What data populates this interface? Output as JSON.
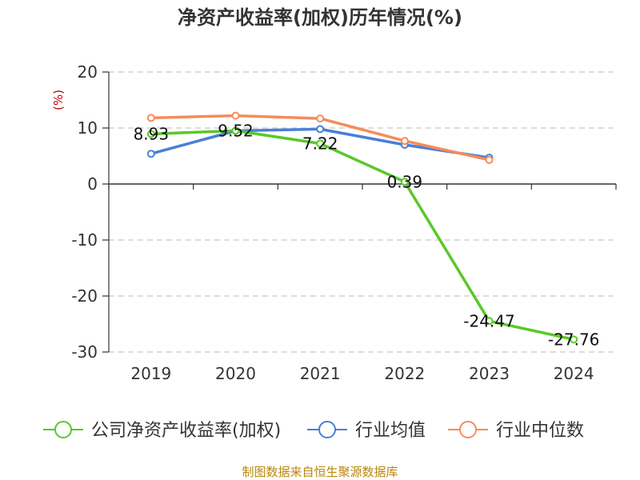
{
  "chart_data": {
    "type": "line",
    "title": "净资产收益率(加权)历年情况(%)",
    "ylabel": "(%)",
    "xlabel": "",
    "ylim": [
      -30,
      20
    ],
    "yticks": [
      20,
      10,
      0,
      -10,
      -20,
      -30
    ],
    "categories": [
      "2019",
      "2020",
      "2021",
      "2022",
      "2023",
      "2024"
    ],
    "grid": true,
    "legend_position": "bottom",
    "series": [
      {
        "name": "公司净资产收益率(加权)",
        "color": "#5ac82a",
        "values": [
          8.93,
          9.52,
          7.22,
          0.39,
          -24.47,
          -27.76
        ],
        "labels": [
          "8.93",
          "9.52",
          "7.22",
          "0.39",
          "-24.47",
          "-27.76"
        ]
      },
      {
        "name": "行业均值",
        "color": "#4a7fd8",
        "values": [
          5.4,
          9.5,
          9.8,
          7.0,
          4.7,
          null
        ]
      },
      {
        "name": "行业中位数",
        "color": "#f58c5a",
        "values": [
          11.8,
          12.2,
          11.7,
          7.7,
          4.3,
          null
        ]
      }
    ]
  },
  "footer": "制图数据来自恒生聚源数据库"
}
